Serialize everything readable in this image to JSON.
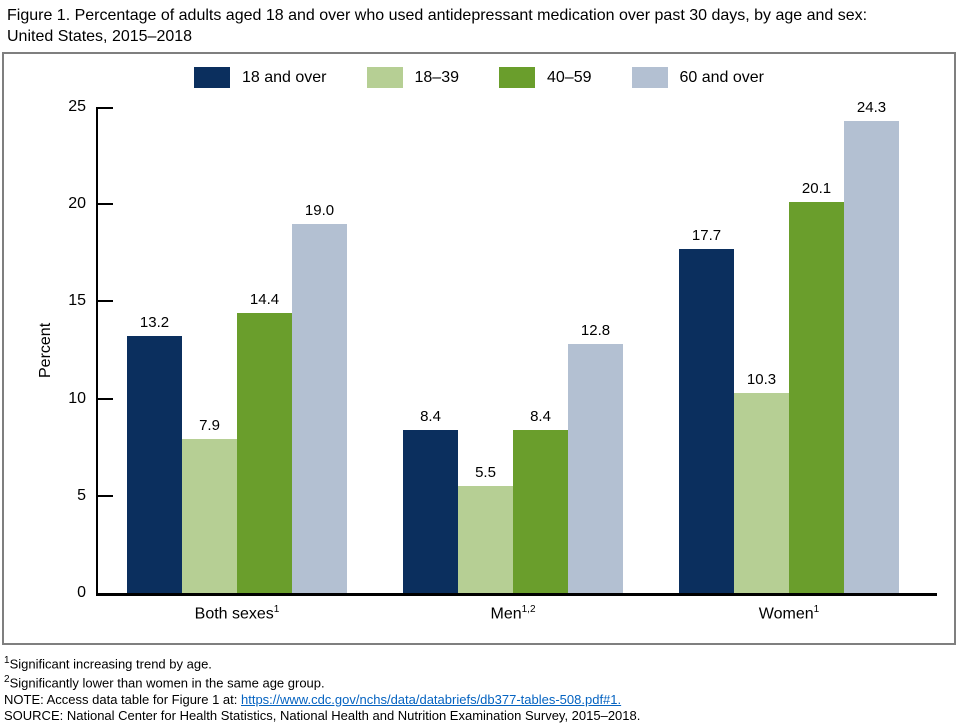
{
  "title": {
    "line1": "Figure 1. Percentage of adults aged 18 and over who used antidepressant medication over past 30 days, by age and sex:",
    "line2": "United States, 2015–2018"
  },
  "colors": {
    "series_18_and_over": "#0b2f5e",
    "series_18_39": "#b6cf94",
    "series_40_59": "#6a9e2c",
    "series_60_and_over": "#b3c0d2",
    "panel_border": "#7f7f7f",
    "link_blue": "#0563c1"
  },
  "chart_data": {
    "type": "bar",
    "title": "Percentage of adults aged 18 and over who used antidepressant medication over past 30 days, by age and sex: United States, 2015–2018",
    "categories": [
      "Both sexes",
      "Men",
      "Women"
    ],
    "category_sups": [
      "1",
      "1,2",
      "1"
    ],
    "series": [
      {
        "name": "18 and over",
        "color": "#0b2f5e",
        "values": [
          13.2,
          8.4,
          17.7
        ],
        "labels": [
          "13.2",
          "8.4",
          "17.7"
        ]
      },
      {
        "name": "18–39",
        "color": "#b6cf94",
        "values": [
          7.9,
          5.5,
          10.3
        ],
        "labels": [
          "7.9",
          "5.5",
          "10.3"
        ]
      },
      {
        "name": "40–59",
        "color": "#6a9e2c",
        "values": [
          14.4,
          8.4,
          20.1
        ],
        "labels": [
          "14.4",
          "8.4",
          "20.1"
        ]
      },
      {
        "name": "60 and over",
        "color": "#b3c0d2",
        "values": [
          19.0,
          12.8,
          24.3
        ],
        "labels": [
          "19.0",
          "12.8",
          "24.3"
        ]
      }
    ],
    "xlabel": "",
    "ylabel": "Percent",
    "ylim": [
      0,
      25
    ],
    "yticks": [
      0,
      5,
      10,
      15,
      20,
      25
    ],
    "grid": false,
    "legend_position": "top"
  },
  "footnotes": {
    "fn1": {
      "sup": "1",
      "text": "Significant increasing trend by age."
    },
    "fn2": {
      "sup": "2",
      "text": "Significantly lower than women in the same age group."
    },
    "note": {
      "prefix": "NOTE: Access data table for Figure 1 at: ",
      "link_text": "https://www.cdc.gov/nchs/data/databriefs/db377-tables-508.pdf#1."
    },
    "source": "SOURCE: National Center for Health Statistics, National Health and Nutrition Examination Survey, 2015–2018."
  }
}
